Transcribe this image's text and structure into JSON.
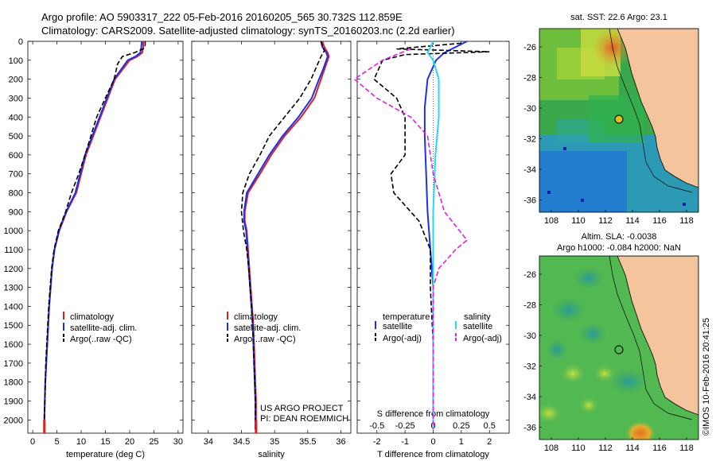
{
  "header": {
    "line1": "Argo profile: AO 5903317_222 05-Feb-2016 20160205_565 30.732S 112.859E",
    "line2": "Climatology: CARS2009. Satellite-adjusted climatology: synTS_20160203.nc (2.2d earlier)"
  },
  "colors": {
    "climatology": "#e0201f",
    "satellite": "#1f2fe8",
    "argo": "#000000",
    "sal_satellite": "#28d8f0",
    "sal_argo": "#e020e0",
    "land": "#f4c49c"
  },
  "chart_data": [
    {
      "id": "temperature",
      "type": "line",
      "xlabel": "temperature (deg C)",
      "ylabel": "",
      "xlim": [
        -1,
        31
      ],
      "xticks": [
        0,
        5,
        10,
        15,
        20,
        25,
        30
      ],
      "ylim": [
        0,
        2070
      ],
      "yticks": [
        0,
        100,
        200,
        300,
        400,
        500,
        600,
        700,
        800,
        900,
        1000,
        1100,
        1200,
        1300,
        1400,
        1500,
        1600,
        1700,
        1800,
        1900,
        2000
      ],
      "legend": [
        {
          "label": "climatology",
          "color": "#e0201f",
          "dash": "solid"
        },
        {
          "label": "satellite-adj. clim.",
          "color": "#1f2fe8",
          "dash": "solid"
        },
        {
          "label": "Argo(..raw -QC)",
          "color": "#000000",
          "dash": "dashed"
        }
      ],
      "series": [
        {
          "name": "climatology",
          "color": "#e0201f",
          "dash": "solid",
          "points": [
            [
              22.8,
              0
            ],
            [
              22.8,
              30
            ],
            [
              22.6,
              60
            ],
            [
              21.6,
              80
            ],
            [
              20,
              100
            ],
            [
              18.5,
              150
            ],
            [
              17,
              200
            ],
            [
              15.5,
              300
            ],
            [
              14,
              400
            ],
            [
              12.5,
              500
            ],
            [
              11,
              600
            ],
            [
              10,
              700
            ],
            [
              9,
              800
            ],
            [
              7,
              900
            ],
            [
              5.5,
              1000
            ],
            [
              4.5,
              1100
            ],
            [
              4,
              1200
            ],
            [
              3.7,
              1300
            ],
            [
              3.4,
              1400
            ],
            [
              3.2,
              1500
            ],
            [
              3,
              1600
            ],
            [
              2.8,
              1700
            ],
            [
              2.6,
              1800
            ],
            [
              2.5,
              1900
            ],
            [
              2.4,
              2000
            ],
            [
              2.4,
              2050
            ]
          ]
        },
        {
          "name": "satellite-adj. clim.",
          "color": "#1f2fe8",
          "dash": "solid",
          "points": [
            [
              22.5,
              0
            ],
            [
              22.4,
              30
            ],
            [
              22.2,
              60
            ],
            [
              21.2,
              80
            ],
            [
              19.6,
              100
            ],
            [
              18.2,
              150
            ],
            [
              16.8,
              200
            ],
            [
              15.3,
              300
            ],
            [
              13.8,
              400
            ],
            [
              12.3,
              500
            ],
            [
              10.8,
              600
            ],
            [
              9.8,
              700
            ],
            [
              8.8,
              800
            ],
            [
              6.9,
              900
            ],
            [
              5.4,
              1000
            ],
            [
              4.5,
              1100
            ],
            [
              4,
              1200
            ],
            [
              3.7,
              1300
            ],
            [
              3.4,
              1400
            ],
            [
              3.2,
              1500
            ],
            [
              3,
              1600
            ],
            [
              2.8,
              1700
            ],
            [
              2.6,
              1800
            ],
            [
              2.5,
              1900
            ],
            [
              2.4,
              2000
            ],
            [
              2.4,
              2050
            ]
          ]
        },
        {
          "name": "Argo(..raw -QC)",
          "color": "#000000",
          "dash": "dashed",
          "points": [
            [
              23.2,
              0
            ],
            [
              23.2,
              20
            ],
            [
              22.8,
              40
            ],
            [
              21,
              60
            ],
            [
              18.5,
              80
            ],
            [
              17.5,
              120
            ],
            [
              16.8,
              200
            ],
            [
              15,
              300
            ],
            [
              13.2,
              400
            ],
            [
              12,
              500
            ],
            [
              10.8,
              600
            ],
            [
              9.5,
              700
            ],
            [
              8,
              800
            ],
            [
              6.8,
              900
            ],
            [
              5.3,
              1000
            ],
            [
              4.4,
              1100
            ],
            [
              3.9,
              1200
            ],
            [
              3.6,
              1300
            ],
            [
              3.3,
              1400
            ],
            [
              3.1,
              1500
            ],
            [
              2.9,
              1600
            ],
            [
              2.7,
              1700
            ],
            [
              2.6,
              1800
            ],
            [
              2.5,
              1900
            ],
            [
              2.4,
              2000
            ],
            [
              2.4,
              2050
            ]
          ]
        }
      ]
    },
    {
      "id": "salinity",
      "type": "line",
      "xlabel": "salinity",
      "ylabel": "",
      "xlim": [
        33.75,
        36.15
      ],
      "xticks": [
        34,
        34.5,
        35,
        35.5,
        36
      ],
      "ylim": [
        0,
        2070
      ],
      "legend": [
        {
          "label": "climatology",
          "color": "#e0201f",
          "dash": "solid"
        },
        {
          "label": "satellite-adj. clim.",
          "color": "#1f2fe8",
          "dash": "solid"
        },
        {
          "label": "Argo(..raw -QC)",
          "color": "#000000",
          "dash": "dashed"
        }
      ],
      "annotation": [
        "US ARGO PROJECT",
        "PI: DEAN ROEMMICH"
      ],
      "series": [
        {
          "name": "climatology",
          "color": "#e0201f",
          "dash": "solid",
          "points": [
            [
              35.72,
              0
            ],
            [
              35.75,
              30
            ],
            [
              35.8,
              60
            ],
            [
              35.82,
              80
            ],
            [
              35.8,
              100
            ],
            [
              35.75,
              150
            ],
            [
              35.7,
              200
            ],
            [
              35.6,
              300
            ],
            [
              35.4,
              400
            ],
            [
              35.15,
              500
            ],
            [
              34.95,
              600
            ],
            [
              34.78,
              700
            ],
            [
              34.6,
              800
            ],
            [
              34.55,
              900
            ],
            [
              34.55,
              950
            ],
            [
              34.58,
              1000
            ],
            [
              34.6,
              1100
            ],
            [
              34.62,
              1200
            ],
            [
              34.64,
              1300
            ],
            [
              34.66,
              1400
            ],
            [
              34.68,
              1500
            ],
            [
              34.69,
              1600
            ],
            [
              34.7,
              1700
            ],
            [
              34.71,
              1800
            ],
            [
              34.72,
              1900
            ],
            [
              34.72,
              2000
            ],
            [
              34.72,
              2050
            ]
          ]
        },
        {
          "name": "satellite-adj. clim.",
          "color": "#1f2fe8",
          "dash": "solid",
          "points": [
            [
              35.7,
              0
            ],
            [
              35.72,
              30
            ],
            [
              35.78,
              60
            ],
            [
              35.8,
              80
            ],
            [
              35.78,
              100
            ],
            [
              35.73,
              150
            ],
            [
              35.67,
              200
            ],
            [
              35.56,
              300
            ],
            [
              35.36,
              400
            ],
            [
              35.12,
              500
            ],
            [
              34.92,
              600
            ],
            [
              34.75,
              700
            ],
            [
              34.58,
              800
            ],
            [
              34.54,
              900
            ],
            [
              34.54,
              950
            ],
            [
              34.57,
              1000
            ],
            [
              34.59,
              1100
            ],
            [
              34.61,
              1200
            ],
            [
              34.63,
              1300
            ],
            [
              34.65,
              1400
            ],
            [
              34.67,
              1500
            ],
            [
              34.68,
              1600
            ],
            [
              34.69,
              1700
            ],
            [
              34.7,
              1800
            ],
            [
              34.71,
              1900
            ],
            [
              34.71,
              2000
            ],
            [
              34.71,
              2050
            ]
          ]
        },
        {
          "name": "Argo(..raw -QC)",
          "color": "#000000",
          "dash": "dashed",
          "points": [
            [
              35.7,
              0
            ],
            [
              35.72,
              20
            ],
            [
              35.75,
              50
            ],
            [
              35.7,
              80
            ],
            [
              35.65,
              120
            ],
            [
              35.55,
              200
            ],
            [
              35.38,
              300
            ],
            [
              35.15,
              400
            ],
            [
              34.92,
              500
            ],
            [
              34.78,
              600
            ],
            [
              34.62,
              700
            ],
            [
              34.52,
              800
            ],
            [
              34.5,
              900
            ],
            [
              34.53,
              1000
            ],
            [
              34.58,
              1100
            ],
            [
              34.61,
              1200
            ],
            [
              34.63,
              1300
            ],
            [
              34.65,
              1400
            ],
            [
              34.67,
              1500
            ],
            [
              34.68,
              1600
            ],
            [
              34.69,
              1700
            ],
            [
              34.7,
              1800
            ],
            [
              34.71,
              1900
            ],
            [
              34.71,
              2000
            ],
            [
              34.71,
              2050
            ]
          ]
        }
      ]
    },
    {
      "id": "differences",
      "type": "line",
      "xlabel": "T difference from climatology",
      "xlabel_top": "S difference from climatology",
      "xlim": [
        -2.7,
        2.7
      ],
      "xticks": [
        -2,
        -1,
        0,
        1,
        2
      ],
      "xticks_s": [
        {
          "value": -0.5,
          "label": "-0.5"
        },
        {
          "value": -0.25,
          "label": "-0.25"
        },
        {
          "value": 0,
          "label": "0"
        },
        {
          "value": 0.25,
          "label": "0.25"
        },
        {
          "value": 0.5,
          "label": "0.5"
        }
      ],
      "ylim": [
        0,
        2070
      ],
      "legend_headers": [
        "temperature",
        "salinity"
      ],
      "legend": [
        {
          "label": "satellite",
          "color": "#1f2fe8",
          "dash": "solid",
          "col": 0
        },
        {
          "label": "Argo(-adj)",
          "color": "#000000",
          "dash": "dashed",
          "col": 0
        },
        {
          "label": "satellite",
          "color": "#28d8f0",
          "dash": "solid",
          "col": 1
        },
        {
          "label": "Argo(-adj)",
          "color": "#e020e0",
          "dash": "dashed",
          "col": 1
        }
      ],
      "series": [
        {
          "name": "T satellite",
          "color": "#1f2fe8",
          "dash": "solid",
          "points": [
            [
              1.2,
              0
            ],
            [
              0.8,
              30
            ],
            [
              0.4,
              60
            ],
            [
              0.1,
              100
            ],
            [
              -0.2,
              200
            ],
            [
              -0.3,
              350
            ],
            [
              -0.3,
              500
            ],
            [
              -0.25,
              700
            ],
            [
              -0.2,
              900
            ],
            [
              -0.1,
              1100
            ],
            [
              0,
              1300
            ],
            [
              0,
              1600
            ],
            [
              0,
              2050
            ]
          ]
        },
        {
          "name": "T Argo(-adj)",
          "color": "#000000",
          "dash": "dashed",
          "points": [
            [
              1,
              10
            ],
            [
              -1.3,
              40
            ],
            [
              2,
              55
            ],
            [
              -1,
              70
            ],
            [
              -1.8,
              100
            ],
            [
              -2.1,
              200
            ],
            [
              -1.3,
              300
            ],
            [
              -1,
              400
            ],
            [
              -1,
              500
            ],
            [
              -1,
              600
            ],
            [
              -1.5,
              700
            ],
            [
              -1.4,
              800
            ],
            [
              -0.5,
              950
            ],
            [
              -0.1,
              1100
            ],
            [
              -0.1,
              1300
            ],
            [
              0,
              1600
            ],
            [
              0,
              2050
            ]
          ]
        },
        {
          "name": "S satellite",
          "color": "#28d8f0",
          "dash": "solid",
          "points": [
            [
              0,
              0
            ],
            [
              -0.05,
              60
            ],
            [
              0,
              100
            ],
            [
              0.05,
              200
            ],
            [
              0.05,
              400
            ],
            [
              0.02,
              600
            ],
            [
              0,
              900
            ],
            [
              0,
              1200
            ],
            [
              0,
              1600
            ],
            [
              0,
              2050
            ]
          ]
        },
        {
          "name": "S Argo(-adj)",
          "color": "#e020e0",
          "dash": "dashed",
          "points": [
            [
              -0.2,
              40
            ],
            [
              -0.45,
              100
            ],
            [
              -0.7,
              200
            ],
            [
              -0.5,
              300
            ],
            [
              -0.2,
              400
            ],
            [
              -0.05,
              500
            ],
            [
              0,
              700
            ],
            [
              0.1,
              900
            ],
            [
              0.3,
              1050
            ],
            [
              0.2,
              1100
            ],
            [
              0.05,
              1200
            ],
            [
              0,
              1300
            ],
            [
              0,
              1600
            ],
            [
              0,
              2050
            ]
          ]
        }
      ]
    }
  ],
  "maps": [
    {
      "id": "sst-map",
      "title": "sat. SST: 22.6 Argo: 23.1",
      "xticks": [
        "108",
        "110",
        "112",
        "114",
        "116",
        "118"
      ],
      "yticks": [
        "-26",
        "-28",
        "-30",
        "-32",
        "-34",
        "-36"
      ]
    },
    {
      "id": "sla-map",
      "title1": "Altim. SLA: -0.0038",
      "title2": "Argo h1000: -0.084 h2000: NaN",
      "xticks": [
        "108",
        "110",
        "112",
        "114",
        "116",
        "118"
      ],
      "yticks": [
        "-26",
        "-28",
        "-30",
        "-32",
        "-34",
        "-36"
      ]
    }
  ],
  "credit": "©IMOS 10-Feb-2016 20:41:25"
}
